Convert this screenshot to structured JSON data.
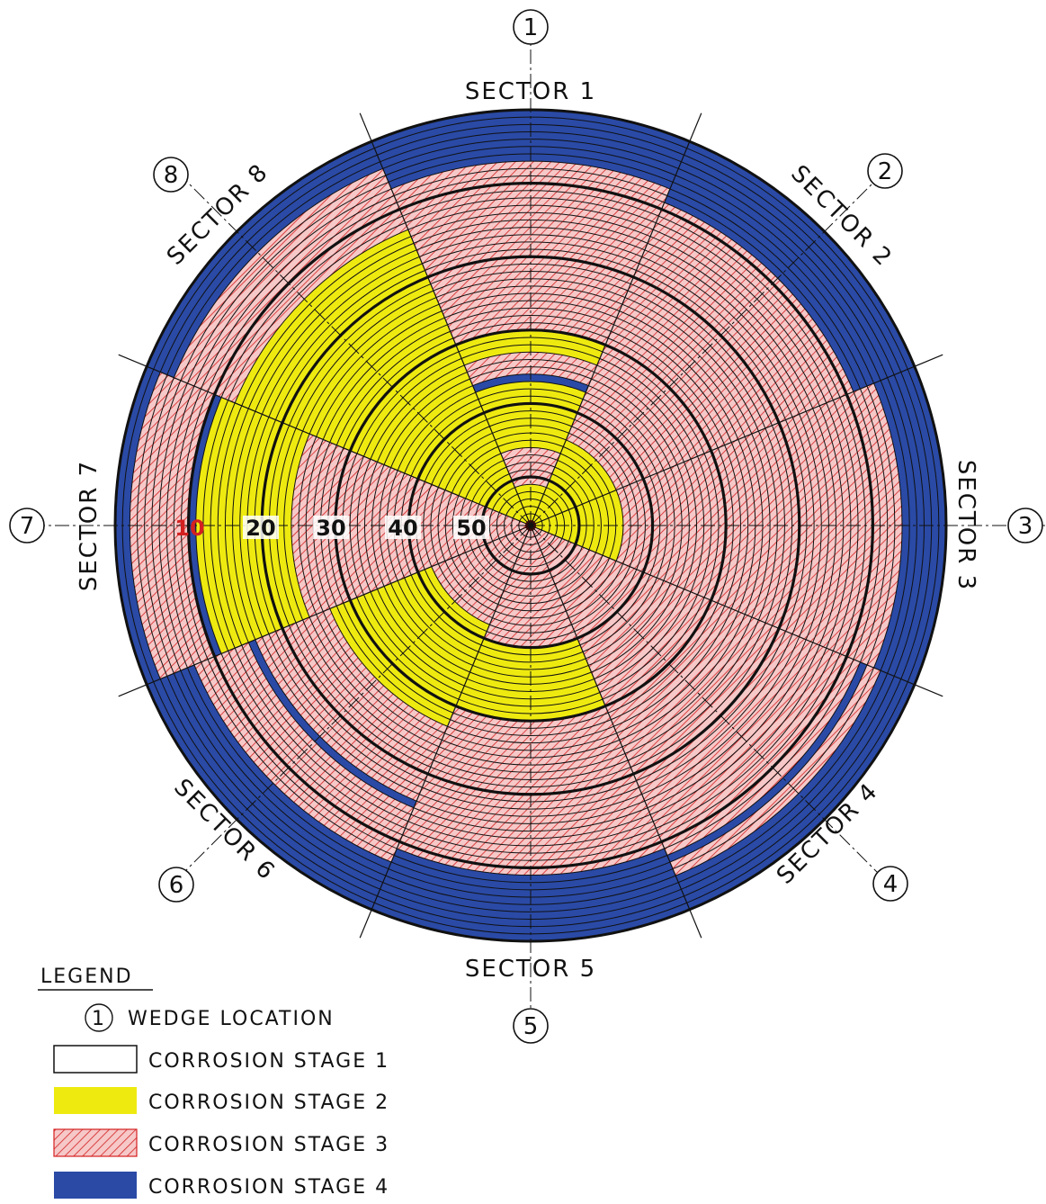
{
  "sector_labels": [
    "SECTOR 1",
    "SECTOR 2",
    "SECTOR 3",
    "SECTOR 4",
    "SECTOR 5",
    "SECTOR 6",
    "SECTOR 7",
    "SECTOR 8"
  ],
  "wedge_numbers": [
    "1",
    "2",
    "3",
    "4",
    "5",
    "6",
    "7",
    "8"
  ],
  "ring_numbers": [
    {
      "text": "10",
      "color": "#d42020"
    },
    {
      "text": "20",
      "color": "#111111"
    },
    {
      "text": "30",
      "color": "#111111"
    },
    {
      "text": "40",
      "color": "#111111"
    },
    {
      "text": "50",
      "color": "#111111"
    }
  ],
  "legend": {
    "title": "LEGEND",
    "wedge_symbol": "1",
    "wedge_label": "WEDGE LOCATION",
    "items": [
      {
        "stage": 1,
        "label": "CORROSION STAGE 1",
        "color": "#ffffff"
      },
      {
        "stage": 2,
        "label": "CORROSION STAGE 2",
        "color": "#eeea10"
      },
      {
        "stage": 3,
        "label": "CORROSION STAGE 3",
        "color": "#f6c8c8"
      },
      {
        "stage": 4,
        "label": "CORROSION STAGE 4",
        "color": "#2a4aa6"
      }
    ]
  },
  "colors": {
    "stage2": "#eeea10",
    "stage3_bg": "#f6c8c8",
    "stage3_hatch": "#d42020",
    "stage4": "#2a4aa6",
    "ring_line": "#111111"
  },
  "corrosion_map": {
    "ring_count": 56,
    "bands": [
      {
        "sector": 1,
        "stage": 4,
        "rings_from": 1,
        "rings_to": 7
      },
      {
        "sector": 1,
        "stage": 3,
        "rings_from": 8,
        "rings_to": 30
      },
      {
        "sector": 1,
        "stage": 2,
        "rings_from": 31,
        "rings_to": 33
      },
      {
        "sector": 1,
        "stage": 3,
        "rings_from": 34,
        "rings_to": 36
      },
      {
        "sector": 1,
        "stage": 4,
        "rings_from": 37,
        "rings_to": 37
      },
      {
        "sector": 1,
        "stage": 2,
        "rings_from": 38,
        "rings_to": 46
      },
      {
        "sector": 1,
        "stage": 3,
        "rings_from": 47,
        "rings_to": 51
      },
      {
        "sector": 1,
        "stage": 2,
        "rings_from": 52,
        "rings_to": 56
      },
      {
        "sector": 2,
        "stage": 4,
        "rings_from": 1,
        "rings_to": 9
      },
      {
        "sector": 2,
        "stage": 3,
        "rings_from": 10,
        "rings_to": 44
      },
      {
        "sector": 2,
        "stage": 2,
        "rings_from": 45,
        "rings_to": 56
      },
      {
        "sector": 3,
        "stage": 4,
        "rings_from": 1,
        "rings_to": 6
      },
      {
        "sector": 3,
        "stage": 3,
        "rings_from": 7,
        "rings_to": 44
      },
      {
        "sector": 3,
        "stage": 2,
        "rings_from": 45,
        "rings_to": 56
      },
      {
        "sector": 4,
        "stage": 4,
        "rings_from": 1,
        "rings_to": 5
      },
      {
        "sector": 4,
        "stage": 3,
        "rings_from": 6,
        "rings_to": 7
      },
      {
        "sector": 4,
        "stage": 4,
        "rings_from": 8,
        "rings_to": 8
      },
      {
        "sector": 4,
        "stage": 3,
        "rings_from": 9,
        "rings_to": 56
      },
      {
        "sector": 5,
        "stage": 4,
        "rings_from": 1,
        "rings_to": 9
      },
      {
        "sector": 5,
        "stage": 3,
        "rings_from": 10,
        "rings_to": 30
      },
      {
        "sector": 5,
        "stage": 2,
        "rings_from": 31,
        "rings_to": 40
      },
      {
        "sector": 5,
        "stage": 3,
        "rings_from": 41,
        "rings_to": 56
      },
      {
        "sector": 6,
        "stage": 4,
        "rings_from": 1,
        "rings_to": 7
      },
      {
        "sector": 6,
        "stage": 3,
        "rings_from": 8,
        "rings_to": 15
      },
      {
        "sector": 6,
        "stage": 4,
        "rings_from": 16,
        "rings_to": 16
      },
      {
        "sector": 6,
        "stage": 3,
        "rings_from": 17,
        "rings_to": 27
      },
      {
        "sector": 6,
        "stage": 2,
        "rings_from": 28,
        "rings_to": 42
      },
      {
        "sector": 6,
        "stage": 3,
        "rings_from": 43,
        "rings_to": 56
      },
      {
        "sector": 7,
        "stage": 4,
        "rings_from": 1,
        "rings_to": 2
      },
      {
        "sector": 7,
        "stage": 3,
        "rings_from": 3,
        "rings_to": 10
      },
      {
        "sector": 7,
        "stage": 4,
        "rings_from": 11,
        "rings_to": 11
      },
      {
        "sector": 7,
        "stage": 2,
        "rings_from": 12,
        "rings_to": 24
      },
      {
        "sector": 7,
        "stage": 3,
        "rings_from": 25,
        "rings_to": 56
      },
      {
        "sector": 8,
        "stage": 4,
        "rings_from": 1,
        "rings_to": 4
      },
      {
        "sector": 8,
        "stage": 3,
        "rings_from": 5,
        "rings_to": 13
      },
      {
        "sector": 8,
        "stage": 2,
        "rings_from": 14,
        "rings_to": 56
      }
    ]
  }
}
